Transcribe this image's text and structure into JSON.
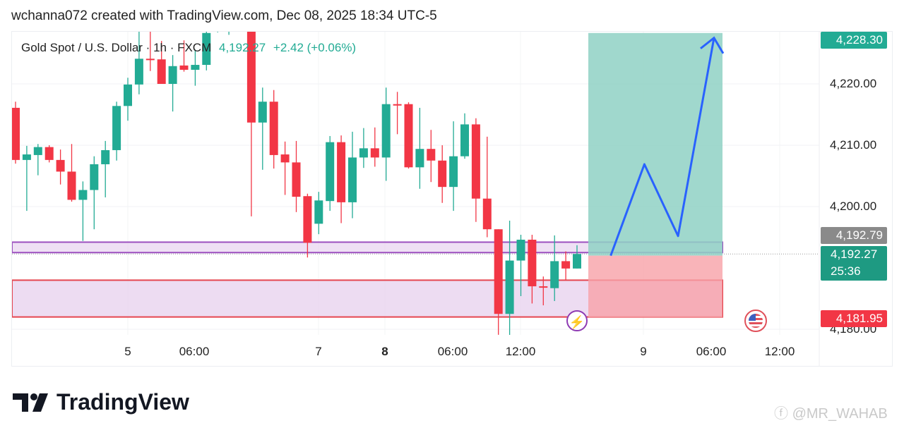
{
  "header": {
    "credit": "wchanna072 created with TradingView.com, Dec 08, 2025 18:34 UTC-5"
  },
  "legend": {
    "symbol": "Gold Spot / U.S. Dollar · 1h · FXCM",
    "last": "4,192.27",
    "change": "+2.42 (+0.06%)"
  },
  "price_labels": {
    "target": "4,228.30",
    "prev_close": "4,192.79",
    "current": "4,192.27",
    "countdown": "25:36",
    "stop": "4,181.95"
  },
  "footer": {
    "brand": "TradingView",
    "watermark": "@MR_WAHAB"
  },
  "colors": {
    "up": "#22ab94",
    "down": "#f23645",
    "target_zone": "#8fd1c4",
    "stop_zone": "#f7a1a7",
    "zone_fill": "#e8d3ef",
    "zone_border_purple": "#9c4fbf",
    "path": "#2962ff"
  },
  "chart_data": {
    "type": "candlestick",
    "title": "Gold Spot / U.S. Dollar · 1h · FXCM",
    "y_ticks": [
      "4,220.00",
      "4,210.00",
      "4,200.00",
      "4,180.00"
    ],
    "y_tick_values": [
      4220,
      4210,
      4200,
      4180
    ],
    "x_ticks": [
      "5",
      "06:00",
      "7",
      "8",
      "06:00",
      "12:00",
      "9",
      "06:00",
      "12:00"
    ],
    "ylim": [
      4177,
      4233
    ],
    "time_index": [
      0,
      1,
      2,
      3,
      4,
      5,
      6,
      7,
      8,
      9,
      10,
      11,
      12,
      13,
      14,
      15,
      16,
      17,
      18,
      19,
      21,
      22,
      23,
      24,
      25,
      26,
      27,
      28,
      29,
      30,
      31,
      32,
      33,
      34,
      35,
      36,
      37,
      38,
      39,
      40,
      41,
      42,
      43,
      44,
      45,
      46,
      47,
      48,
      49,
      50
    ],
    "ohlc": [
      [
        4216.1,
        4217.1,
        4207.0,
        4207.6
      ],
      [
        4207.6,
        4209.9,
        4199.3,
        4208.5
      ],
      [
        4208.4,
        4210.2,
        4205.1,
        4209.7
      ],
      [
        4209.7,
        4210.0,
        4207.2,
        4207.6
      ],
      [
        4207.6,
        4209.3,
        4203.6,
        4205.7
      ],
      [
        4205.7,
        4210.2,
        4200.8,
        4201.1
      ],
      [
        4201.1,
        4204.1,
        4194.4,
        4202.7
      ],
      [
        4202.7,
        4208.2,
        4196.3,
        4206.9
      ],
      [
        4206.9,
        4210.7,
        4201.5,
        4209.2
      ],
      [
        4209.2,
        4217.1,
        4207.5,
        4216.4
      ],
      [
        4216.4,
        4221.0,
        4214.0,
        4219.9
      ],
      [
        4219.9,
        4228.6,
        4218.3,
        4224.1
      ],
      [
        4224.1,
        4228.6,
        4222.1,
        4223.9
      ],
      [
        4224.0,
        4227.0,
        4220.0,
        4220.0
      ],
      [
        4220.0,
        4224.7,
        4215.5,
        4222.9
      ],
      [
        4223.0,
        4227.1,
        4222.0,
        4222.3
      ],
      [
        4222.3,
        4225.6,
        4219.7,
        4223.1
      ],
      [
        4223.1,
        4229.5,
        4222.2,
        4228.3
      ],
      [
        4229.5,
        4231.0,
        4228.4,
        4230.5
      ],
      [
        4230.0,
        4233.0,
        4228.0,
        4232.0
      ],
      [
        4232.0,
        4233.0,
        4198.4,
        4213.7
      ],
      [
        4213.7,
        4219.4,
        4206.0,
        4217.1
      ],
      [
        4217.1,
        4219.0,
        4206.2,
        4208.4
      ],
      [
        4208.5,
        4210.6,
        4201.9,
        4207.2
      ],
      [
        4207.2,
        4210.7,
        4199.1,
        4201.6
      ],
      [
        4201.7,
        4202.1,
        4191.7,
        4194.1
      ],
      [
        4197.2,
        4202.4,
        4195.5,
        4201.0
      ],
      [
        4200.9,
        4211.5,
        4199.3,
        4210.5
      ],
      [
        4210.5,
        4211.6,
        4197.3,
        4200.7
      ],
      [
        4200.7,
        4212.2,
        4198.1,
        4208.0
      ],
      [
        4208.0,
        4212.8,
        4206.3,
        4209.5
      ],
      [
        4209.5,
        4212.9,
        4206.5,
        4208.0
      ],
      [
        4208.0,
        4219.4,
        4204.2,
        4216.7
      ],
      [
        4216.7,
        4218.7,
        4211.8,
        4216.6
      ],
      [
        4216.7,
        4217.0,
        4206.2,
        4206.4
      ],
      [
        4206.4,
        4216.1,
        4202.9,
        4209.4
      ],
      [
        4209.4,
        4212.5,
        4204.0,
        4207.5
      ],
      [
        4207.5,
        4210.0,
        4200.6,
        4203.2
      ],
      [
        4203.2,
        4213.9,
        4199.3,
        4208.2
      ],
      [
        4208.2,
        4215.2,
        4207.8,
        4213.4
      ],
      [
        4213.4,
        4214.4,
        4197.5,
        4201.3
      ],
      [
        4201.3,
        4211.4,
        4195.0,
        4196.3
      ],
      [
        4196.3,
        4196.3,
        4179.1,
        4182.5
      ],
      [
        4182.5,
        4197.7,
        4178.8,
        4191.2
      ],
      [
        4191.2,
        4195.4,
        4185.4,
        4194.6
      ],
      [
        4194.6,
        4195.4,
        4184.2,
        4187.0
      ],
      [
        4187.0,
        4188.6,
        4183.9,
        4186.9
      ],
      [
        4186.7,
        4195.3,
        4184.6,
        4191.1
      ],
      [
        4191.1,
        4192.7,
        4188.0,
        4189.9
      ],
      [
        4189.9,
        4193.7,
        4189.9,
        4192.27
      ]
    ],
    "zones": [
      {
        "name": "upper-zone",
        "top": 4194.2,
        "bottom": 4192.5
      },
      {
        "name": "lower-zone",
        "top": 4188.0,
        "bottom": 4182.0
      }
    ],
    "position": {
      "entry": 4192.0,
      "target": 4228.3,
      "stop": 4181.95
    },
    "projection_path": [
      [
        53,
        4192.0
      ],
      [
        56,
        4206.9
      ],
      [
        59,
        4195.2
      ],
      [
        62.2,
        4227.5
      ]
    ]
  }
}
